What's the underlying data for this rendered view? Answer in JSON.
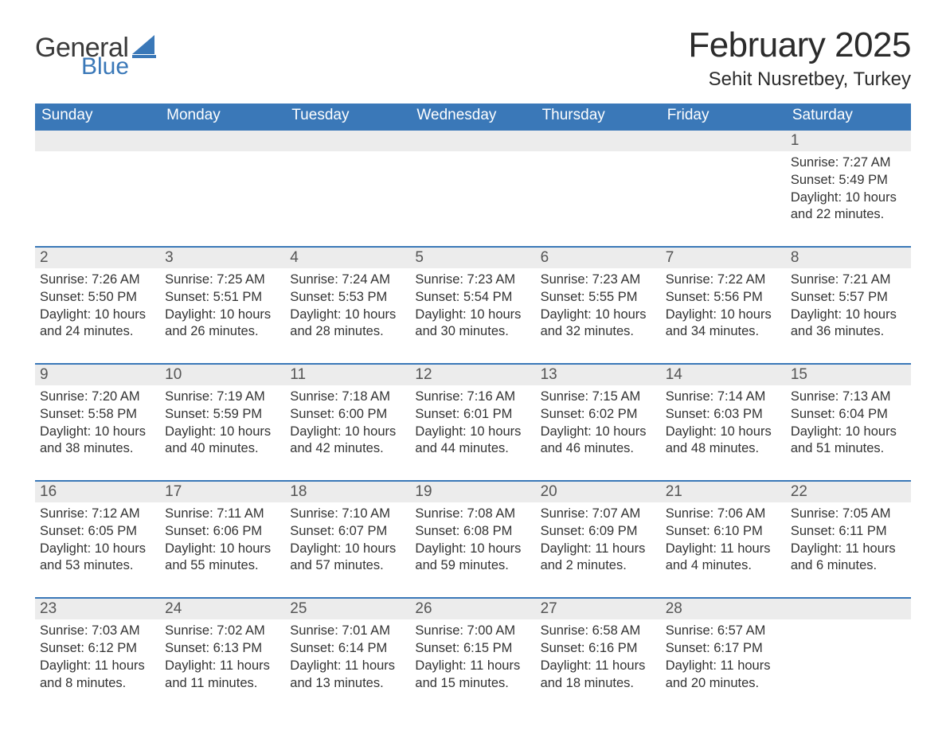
{
  "brand": {
    "word1": "General",
    "word2": "Blue",
    "mark_color": "#3a78b8",
    "text_color": "#3a3a3a"
  },
  "header": {
    "month_title": "February 2025",
    "location": "Sehit Nusretbey, Turkey"
  },
  "colors": {
    "header_row_bg": "#3a78b8",
    "header_row_text": "#ffffff",
    "day_strip_bg": "#ececec",
    "rule": "#3a78b8",
    "page_bg": "#ffffff",
    "body_text": "#333333"
  },
  "typography": {
    "month_title_pt": 33,
    "location_pt": 18,
    "dow_pt": 14,
    "daynum_pt": 14,
    "body_pt": 12
  },
  "dow": [
    "Sunday",
    "Monday",
    "Tuesday",
    "Wednesday",
    "Thursday",
    "Friday",
    "Saturday"
  ],
  "weeks": [
    [
      null,
      null,
      null,
      null,
      null,
      null,
      {
        "n": "1",
        "sunrise": "Sunrise: 7:27 AM",
        "sunset": "Sunset: 5:49 PM",
        "daylight": "Daylight: 10 hours and 22 minutes."
      }
    ],
    [
      {
        "n": "2",
        "sunrise": "Sunrise: 7:26 AM",
        "sunset": "Sunset: 5:50 PM",
        "daylight": "Daylight: 10 hours and 24 minutes."
      },
      {
        "n": "3",
        "sunrise": "Sunrise: 7:25 AM",
        "sunset": "Sunset: 5:51 PM",
        "daylight": "Daylight: 10 hours and 26 minutes."
      },
      {
        "n": "4",
        "sunrise": "Sunrise: 7:24 AM",
        "sunset": "Sunset: 5:53 PM",
        "daylight": "Daylight: 10 hours and 28 minutes."
      },
      {
        "n": "5",
        "sunrise": "Sunrise: 7:23 AM",
        "sunset": "Sunset: 5:54 PM",
        "daylight": "Daylight: 10 hours and 30 minutes."
      },
      {
        "n": "6",
        "sunrise": "Sunrise: 7:23 AM",
        "sunset": "Sunset: 5:55 PM",
        "daylight": "Daylight: 10 hours and 32 minutes."
      },
      {
        "n": "7",
        "sunrise": "Sunrise: 7:22 AM",
        "sunset": "Sunset: 5:56 PM",
        "daylight": "Daylight: 10 hours and 34 minutes."
      },
      {
        "n": "8",
        "sunrise": "Sunrise: 7:21 AM",
        "sunset": "Sunset: 5:57 PM",
        "daylight": "Daylight: 10 hours and 36 minutes."
      }
    ],
    [
      {
        "n": "9",
        "sunrise": "Sunrise: 7:20 AM",
        "sunset": "Sunset: 5:58 PM",
        "daylight": "Daylight: 10 hours and 38 minutes."
      },
      {
        "n": "10",
        "sunrise": "Sunrise: 7:19 AM",
        "sunset": "Sunset: 5:59 PM",
        "daylight": "Daylight: 10 hours and 40 minutes."
      },
      {
        "n": "11",
        "sunrise": "Sunrise: 7:18 AM",
        "sunset": "Sunset: 6:00 PM",
        "daylight": "Daylight: 10 hours and 42 minutes."
      },
      {
        "n": "12",
        "sunrise": "Sunrise: 7:16 AM",
        "sunset": "Sunset: 6:01 PM",
        "daylight": "Daylight: 10 hours and 44 minutes."
      },
      {
        "n": "13",
        "sunrise": "Sunrise: 7:15 AM",
        "sunset": "Sunset: 6:02 PM",
        "daylight": "Daylight: 10 hours and 46 minutes."
      },
      {
        "n": "14",
        "sunrise": "Sunrise: 7:14 AM",
        "sunset": "Sunset: 6:03 PM",
        "daylight": "Daylight: 10 hours and 48 minutes."
      },
      {
        "n": "15",
        "sunrise": "Sunrise: 7:13 AM",
        "sunset": "Sunset: 6:04 PM",
        "daylight": "Daylight: 10 hours and 51 minutes."
      }
    ],
    [
      {
        "n": "16",
        "sunrise": "Sunrise: 7:12 AM",
        "sunset": "Sunset: 6:05 PM",
        "daylight": "Daylight: 10 hours and 53 minutes."
      },
      {
        "n": "17",
        "sunrise": "Sunrise: 7:11 AM",
        "sunset": "Sunset: 6:06 PM",
        "daylight": "Daylight: 10 hours and 55 minutes."
      },
      {
        "n": "18",
        "sunrise": "Sunrise: 7:10 AM",
        "sunset": "Sunset: 6:07 PM",
        "daylight": "Daylight: 10 hours and 57 minutes."
      },
      {
        "n": "19",
        "sunrise": "Sunrise: 7:08 AM",
        "sunset": "Sunset: 6:08 PM",
        "daylight": "Daylight: 10 hours and 59 minutes."
      },
      {
        "n": "20",
        "sunrise": "Sunrise: 7:07 AM",
        "sunset": "Sunset: 6:09 PM",
        "daylight": "Daylight: 11 hours and 2 minutes."
      },
      {
        "n": "21",
        "sunrise": "Sunrise: 7:06 AM",
        "sunset": "Sunset: 6:10 PM",
        "daylight": "Daylight: 11 hours and 4 minutes."
      },
      {
        "n": "22",
        "sunrise": "Sunrise: 7:05 AM",
        "sunset": "Sunset: 6:11 PM",
        "daylight": "Daylight: 11 hours and 6 minutes."
      }
    ],
    [
      {
        "n": "23",
        "sunrise": "Sunrise: 7:03 AM",
        "sunset": "Sunset: 6:12 PM",
        "daylight": "Daylight: 11 hours and 8 minutes."
      },
      {
        "n": "24",
        "sunrise": "Sunrise: 7:02 AM",
        "sunset": "Sunset: 6:13 PM",
        "daylight": "Daylight: 11 hours and 11 minutes."
      },
      {
        "n": "25",
        "sunrise": "Sunrise: 7:01 AM",
        "sunset": "Sunset: 6:14 PM",
        "daylight": "Daylight: 11 hours and 13 minutes."
      },
      {
        "n": "26",
        "sunrise": "Sunrise: 7:00 AM",
        "sunset": "Sunset: 6:15 PM",
        "daylight": "Daylight: 11 hours and 15 minutes."
      },
      {
        "n": "27",
        "sunrise": "Sunrise: 6:58 AM",
        "sunset": "Sunset: 6:16 PM",
        "daylight": "Daylight: 11 hours and 18 minutes."
      },
      {
        "n": "28",
        "sunrise": "Sunrise: 6:57 AM",
        "sunset": "Sunset: 6:17 PM",
        "daylight": "Daylight: 11 hours and 20 minutes."
      },
      null
    ]
  ]
}
